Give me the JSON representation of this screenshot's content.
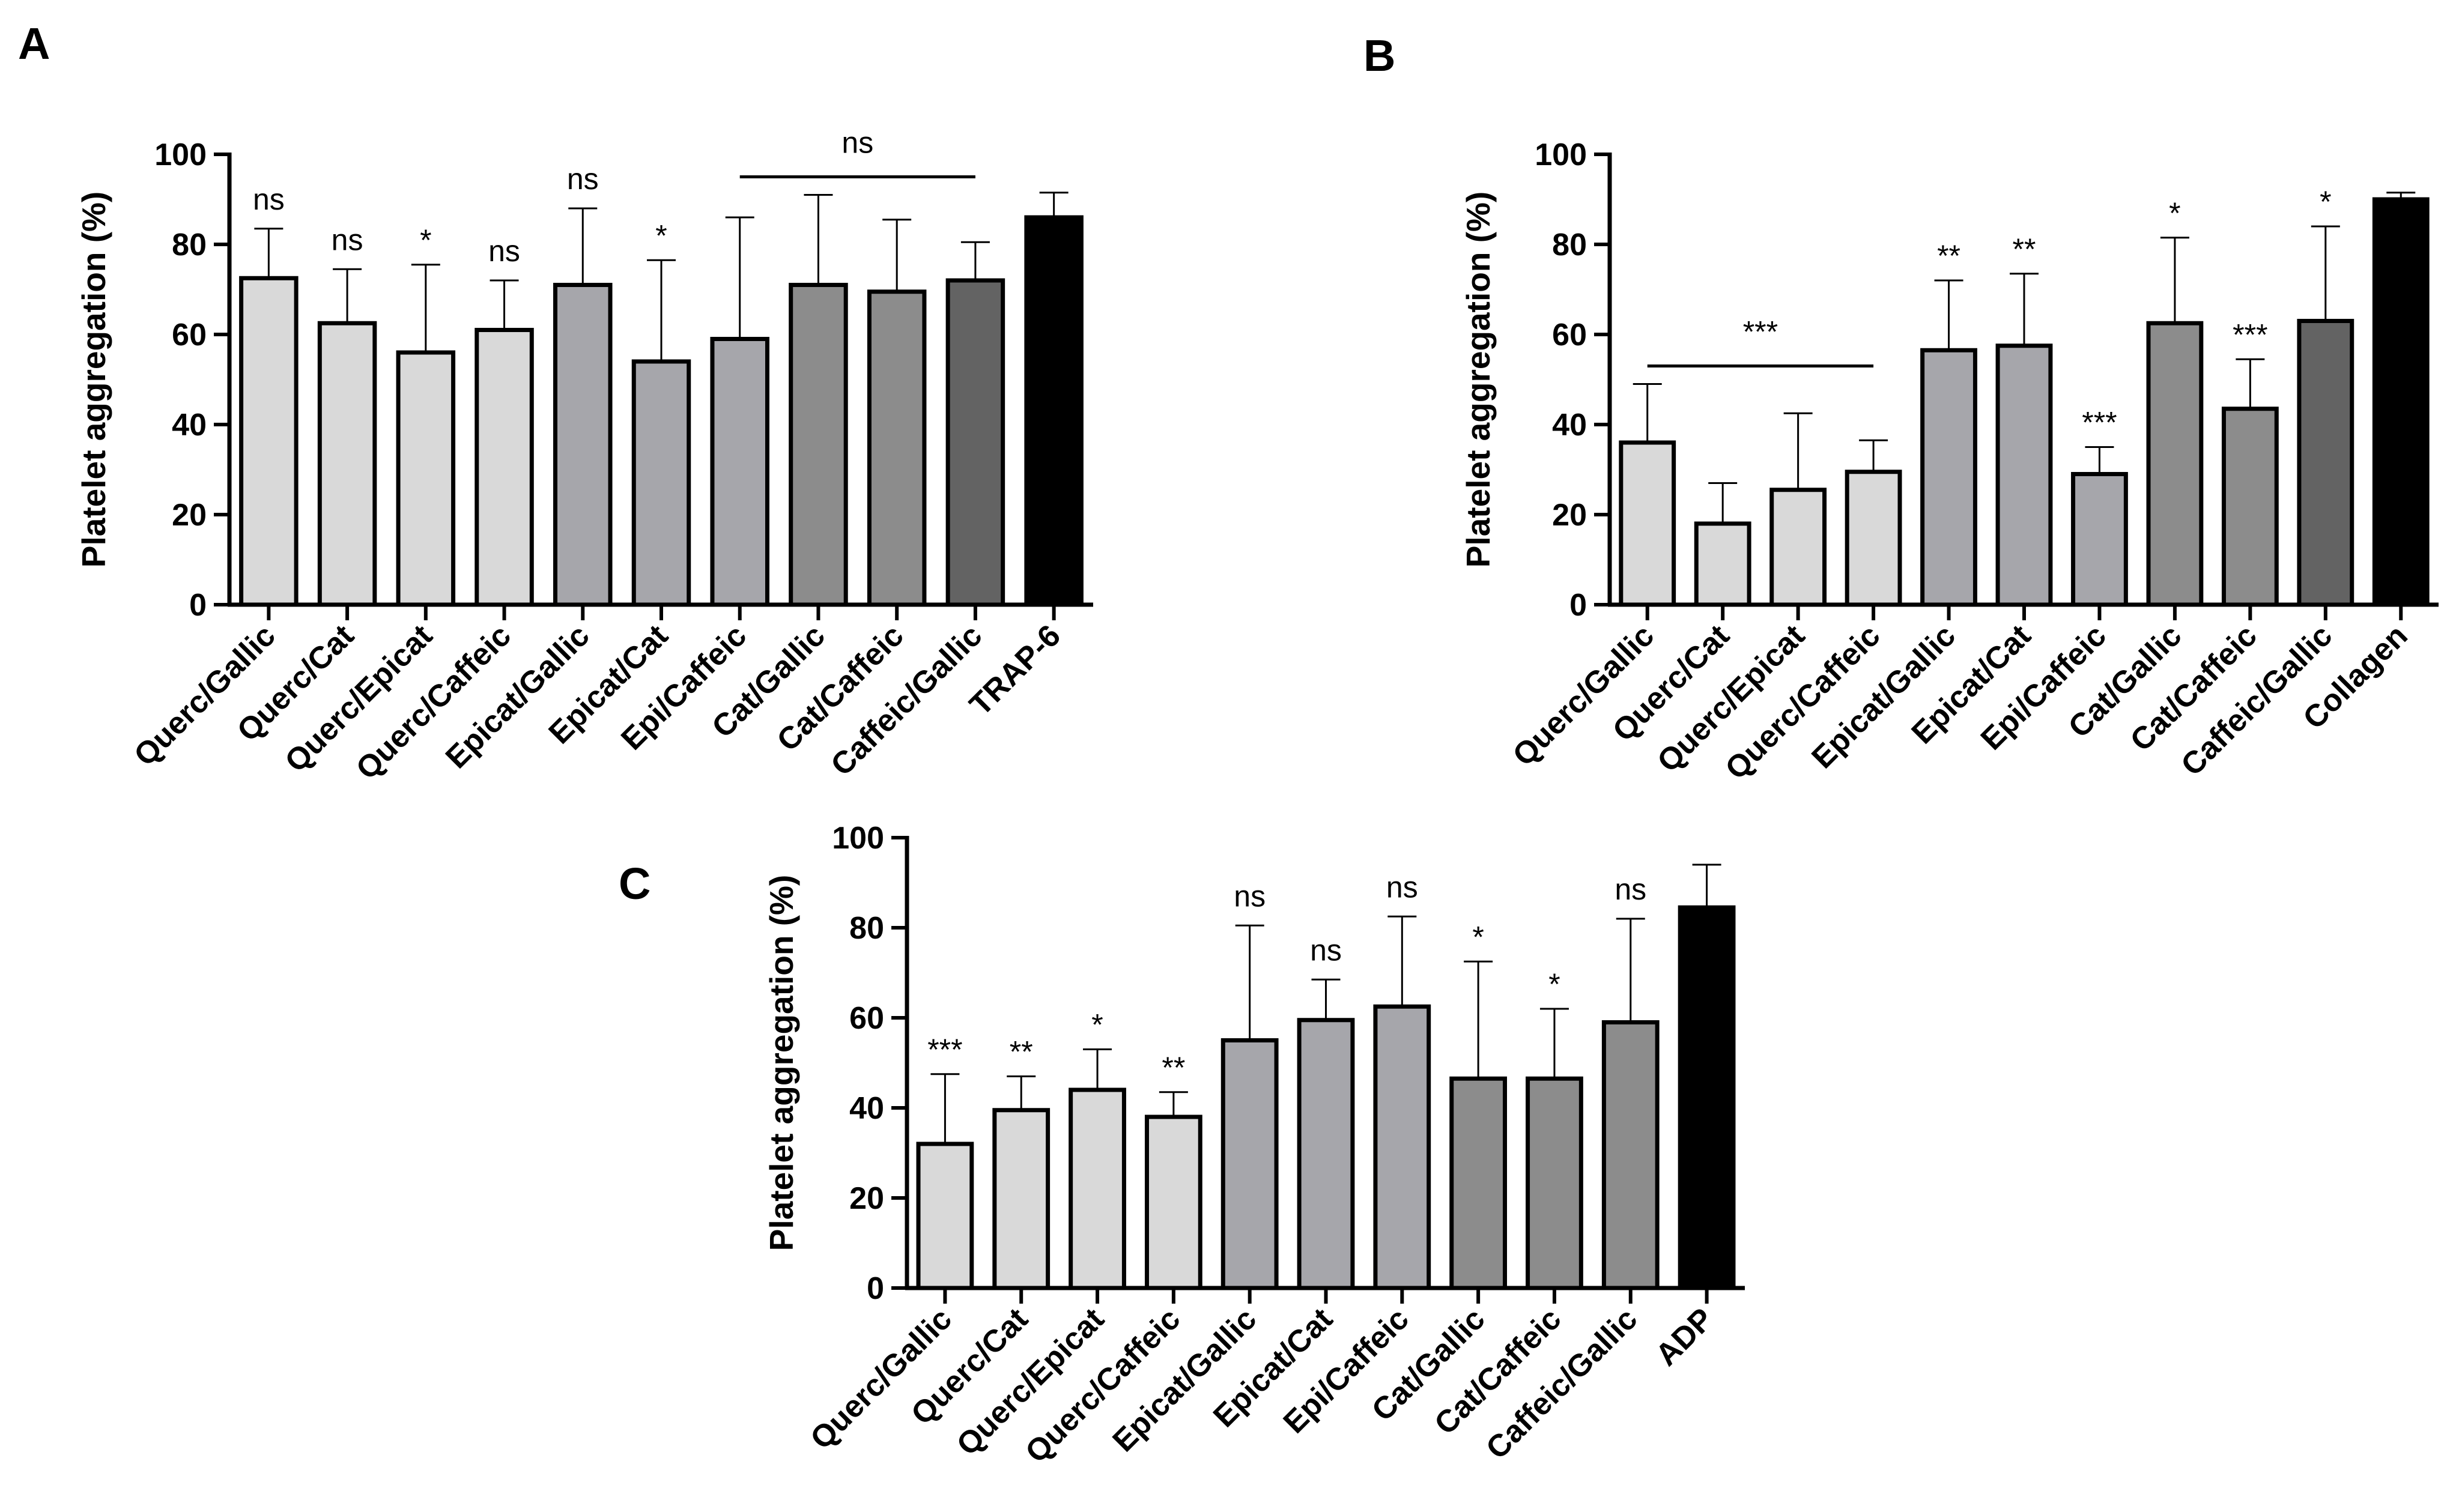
{
  "figure": {
    "charts": [
      {
        "panel": "A",
        "type": "bar",
        "ylabel": "Platelet aggregation (%)",
        "ylim": [
          0,
          100
        ],
        "yticks": [
          0,
          20,
          40,
          60,
          80,
          100
        ],
        "categories": [
          "Querc/Gallic",
          "Querc/Cat",
          "Querc/Epicat",
          "Querc/Caffeic",
          "Epicat/Gallic",
          "Epicat/Cat",
          "Epi/Caffeic",
          "Cat/Gallic",
          "Cat/Caffeic",
          "Caffeic/Gallic",
          "TRAP-6"
        ],
        "values": [
          72.5,
          62.5,
          56,
          61,
          71,
          54,
          59,
          71,
          69.5,
          72,
          86
        ],
        "errors": [
          11,
          12,
          19.5,
          11,
          17,
          22.5,
          27,
          20,
          16,
          8.5,
          5.5
        ],
        "colors": [
          "#d9d9d9",
          "#d9d9d9",
          "#d9d9d9",
          "#d9d9d9",
          "#a6a6ab",
          "#a6a6ab",
          "#a6a6ab",
          "#8c8c8c",
          "#8c8c8c",
          "#636363",
          "#000000"
        ],
        "annotations": [
          "ns",
          "ns",
          "*",
          "ns",
          "ns",
          "*",
          "",
          "",
          "",
          "",
          ""
        ],
        "group_annotation": {
          "label": "ns",
          "from": 6,
          "to": 9
        }
      },
      {
        "panel": "B",
        "type": "bar",
        "ylabel": "Platelet aggregation (%)",
        "ylim": [
          0,
          100
        ],
        "yticks": [
          0,
          20,
          40,
          60,
          80,
          100
        ],
        "categories": [
          "Querc/Gallic",
          "Querc/Cat",
          "Querc/Epicat",
          "Querc/Caffeic",
          "Epicat/Gallic",
          "Epicat/Cat",
          "Epi/Caffeic",
          "Cat/Gallic",
          "Cat/Caffeic",
          "Caffeic/Gallic",
          "Collagen"
        ],
        "values": [
          36,
          18,
          25.5,
          29.5,
          56.5,
          57.5,
          29,
          62.5,
          43.5,
          63,
          90
        ],
        "errors": [
          13,
          9,
          17,
          7,
          15.5,
          16,
          6,
          19,
          11,
          21,
          1.5
        ],
        "colors": [
          "#d9d9d9",
          "#d9d9d9",
          "#d9d9d9",
          "#d9d9d9",
          "#a6a6ab",
          "#a6a6ab",
          "#a6a6ab",
          "#8c8c8c",
          "#8c8c8c",
          "#636363",
          "#000000"
        ],
        "annotations": [
          "",
          "",
          "",
          "",
          "**",
          "**",
          "***",
          "*",
          "***",
          "*",
          ""
        ],
        "group_annotation": {
          "label": "***",
          "from": 0,
          "to": 3
        }
      },
      {
        "panel": "C",
        "type": "bar",
        "ylabel": "Platelet aggregation (%)",
        "ylim": [
          0,
          100
        ],
        "yticks": [
          0,
          20,
          40,
          60,
          80,
          100
        ],
        "categories": [
          "Querc/Gallic",
          "Querc/Cat",
          "Querc/Epicat",
          "Querc/Caffeic",
          "Epicat/Gallic",
          "Epicat/Cat",
          "Epi/Caffeic",
          "Cat/Gallic",
          "Cat/Caffeic",
          "Caffeic/Gallic",
          "ADP"
        ],
        "values": [
          32,
          39.5,
          44,
          38,
          55,
          59.5,
          62.5,
          46.5,
          46.5,
          59,
          84.5
        ],
        "errors": [
          15.5,
          7.5,
          9,
          5.5,
          25.5,
          9,
          20,
          26,
          15.5,
          23,
          9.5
        ],
        "colors": [
          "#d9d9d9",
          "#d9d9d9",
          "#d9d9d9",
          "#d9d9d9",
          "#a6a6ab",
          "#a6a6ab",
          "#a6a6ab",
          "#8c8c8c",
          "#8c8c8c",
          "#8c8c8c",
          "#000000"
        ],
        "annotations": [
          "***",
          "**",
          "*",
          "**",
          "ns",
          "ns",
          "ns",
          "*",
          "*",
          "ns",
          ""
        ],
        "group_annotation": null
      }
    ]
  }
}
